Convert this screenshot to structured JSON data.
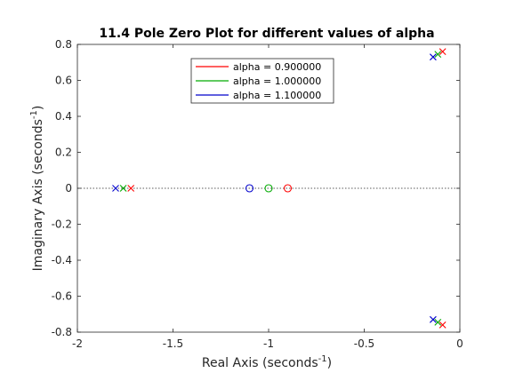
{
  "chart_data": {
    "type": "scatter",
    "title": "11.4 Pole Zero Plot for different values of alpha",
    "xlabel": "Real Axis (seconds",
    "ylabel": "Imaginary Axis (seconds",
    "axis_unit_exponent": "-1",
    "axis_label_close": ")",
    "xlim": [
      -2,
      0
    ],
    "ylim": [
      -0.8,
      0.8
    ],
    "xticks": [
      -2,
      -1.5,
      -1,
      -0.5,
      0
    ],
    "xtick_labels": [
      "-2",
      "-1.5",
      "-1",
      "-0.5",
      "0"
    ],
    "yticks": [
      -0.8,
      -0.6,
      -0.4,
      -0.2,
      0,
      0.2,
      0.4,
      0.6,
      0.8
    ],
    "ytick_labels": [
      "-0.8",
      "-0.6",
      "-0.4",
      "-0.2",
      "0",
      "0.2",
      "0.4",
      "0.6",
      "0.8"
    ],
    "grid": false,
    "zero_line": true,
    "legend_position": "top-center",
    "series": [
      {
        "name": "alpha = 0.900000",
        "color": "#ff0000",
        "poles": [
          [
            -1.72,
            0
          ],
          [
            -0.09,
            0.76
          ],
          [
            -0.09,
            -0.76
          ]
        ],
        "zeros": [
          [
            -0.9,
            0
          ]
        ]
      },
      {
        "name": "alpha = 1.000000",
        "color": "#00aa00",
        "poles": [
          [
            -1.76,
            0
          ],
          [
            -0.115,
            0.745
          ],
          [
            -0.115,
            -0.745
          ]
        ],
        "zeros": [
          [
            -1.0,
            0
          ]
        ]
      },
      {
        "name": "alpha = 1.100000",
        "color": "#0000cc",
        "poles": [
          [
            -1.8,
            0
          ],
          [
            -0.14,
            0.73
          ],
          [
            -0.14,
            -0.73
          ]
        ],
        "zeros": [
          [
            -1.1,
            0
          ]
        ]
      }
    ]
  }
}
